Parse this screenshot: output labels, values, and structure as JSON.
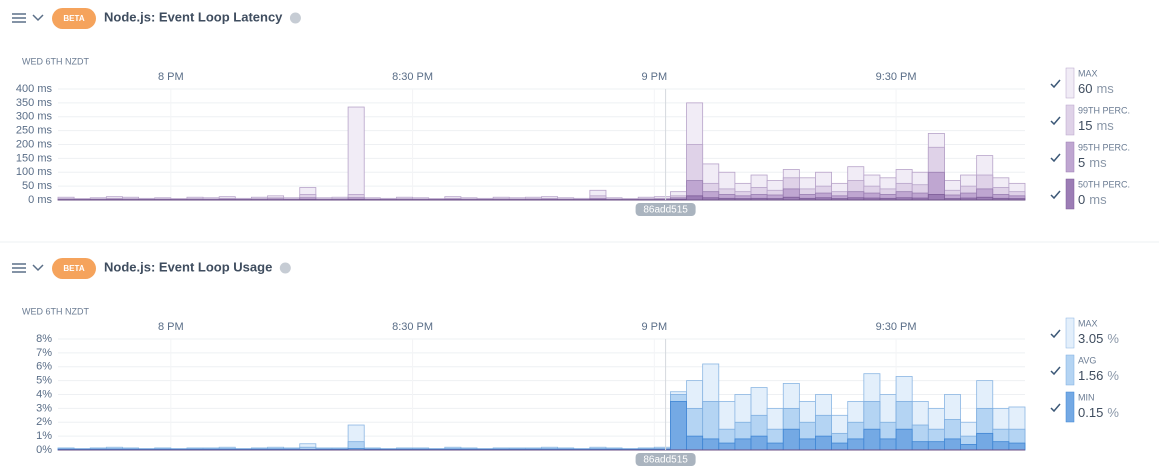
{
  "chart_data": [
    {
      "type": "bar",
      "badge": "BETA",
      "title": "Node.js: Event Loop Latency",
      "date_label": "WED 6TH NZDT",
      "deploy_label": "86add515",
      "grid": true,
      "categories": [
        null,
        null,
        null,
        null,
        null,
        null,
        null,
        "8 PM",
        null,
        null,
        null,
        null,
        null,
        null,
        null,
        null,
        null,
        null,
        null,
        null,
        null,
        null,
        "8:30 PM",
        null,
        null,
        null,
        null,
        null,
        null,
        null,
        null,
        null,
        null,
        null,
        null,
        null,
        null,
        "9 PM",
        null,
        null,
        null,
        null,
        null,
        null,
        null,
        null,
        null,
        null,
        null,
        null,
        null,
        null,
        "9:30 PM",
        null,
        null,
        null,
        null,
        null,
        null,
        null
      ],
      "ylim": [
        0,
        400
      ],
      "yticks": [
        {
          "value": 0,
          "label": "0 ms"
        },
        {
          "value": 50,
          "label": "50 ms"
        },
        {
          "value": 100,
          "label": "100 ms"
        },
        {
          "value": 150,
          "label": "150 ms"
        },
        {
          "value": 200,
          "label": "200 ms"
        },
        {
          "value": 250,
          "label": "250 ms"
        },
        {
          "value": 300,
          "label": "300 ms"
        },
        {
          "value": 350,
          "label": "350 ms"
        },
        {
          "value": 400,
          "label": "400 ms"
        }
      ],
      "series": [
        {
          "name": "MAX",
          "legend_value": 60,
          "unit": "ms",
          "color": "#f1ecf6",
          "stroke": "#b7a3c9",
          "values": [
            10,
            5,
            8,
            12,
            10,
            6,
            8,
            5,
            10,
            8,
            12,
            6,
            10,
            15,
            8,
            45,
            8,
            10,
            335,
            8,
            6,
            10,
            8,
            5,
            12,
            8,
            6,
            10,
            8,
            10,
            12,
            8,
            6,
            35,
            8,
            5,
            10,
            12,
            30,
            350,
            130,
            100,
            60,
            90,
            70,
            110,
            80,
            100,
            60,
            120,
            90,
            80,
            110,
            100,
            240,
            70,
            90,
            160,
            80,
            60
          ]
        },
        {
          "name": "99TH PERC.",
          "legend_value": 15,
          "unit": "ms",
          "color": "#dfd2e8",
          "stroke": "#b7a3c9",
          "values": [
            5,
            3,
            4,
            6,
            5,
            3,
            4,
            3,
            5,
            4,
            6,
            3,
            5,
            8,
            4,
            20,
            4,
            5,
            20,
            4,
            3,
            5,
            4,
            3,
            6,
            4,
            3,
            5,
            4,
            5,
            6,
            4,
            3,
            15,
            4,
            3,
            5,
            6,
            15,
            200,
            60,
            40,
            30,
            45,
            35,
            80,
            40,
            50,
            30,
            70,
            50,
            40,
            60,
            55,
            190,
            35,
            50,
            90,
            45,
            30
          ]
        },
        {
          "name": "95TH PERC.",
          "legend_value": 5,
          "unit": "ms",
          "color": "#bfa6d1",
          "stroke": "#9a7fb2",
          "values": [
            2,
            2,
            2,
            3,
            2,
            2,
            2,
            2,
            2,
            2,
            3,
            2,
            2,
            4,
            2,
            8,
            2,
            2,
            8,
            2,
            2,
            2,
            2,
            2,
            3,
            2,
            2,
            2,
            2,
            2,
            3,
            2,
            2,
            6,
            2,
            2,
            2,
            3,
            8,
            70,
            30,
            20,
            15,
            20,
            18,
            40,
            20,
            25,
            15,
            30,
            25,
            20,
            30,
            25,
            100,
            18,
            25,
            40,
            20,
            15
          ]
        },
        {
          "name": "50TH PERC.",
          "legend_value": 0,
          "unit": "ms",
          "color": "#9c7db5",
          "stroke": "#7d5d98",
          "values": [
            1,
            1,
            1,
            1,
            1,
            1,
            1,
            1,
            1,
            1,
            1,
            1,
            1,
            1,
            1,
            2,
            1,
            1,
            2,
            1,
            1,
            1,
            1,
            1,
            1,
            1,
            1,
            1,
            1,
            1,
            1,
            1,
            1,
            2,
            1,
            1,
            1,
            1,
            3,
            15,
            8,
            6,
            5,
            6,
            5,
            10,
            6,
            8,
            5,
            8,
            7,
            6,
            8,
            7,
            20,
            5,
            7,
            10,
            6,
            5
          ]
        }
      ]
    },
    {
      "type": "bar",
      "badge": "BETA",
      "title": "Node.js: Event Loop Usage",
      "date_label": "WED 6TH NZDT",
      "deploy_label": "86add515",
      "grid": true,
      "categories": [
        null,
        null,
        null,
        null,
        null,
        null,
        null,
        "8 PM",
        null,
        null,
        null,
        null,
        null,
        null,
        null,
        null,
        null,
        null,
        null,
        null,
        null,
        null,
        "8:30 PM",
        null,
        null,
        null,
        null,
        null,
        null,
        null,
        null,
        null,
        null,
        null,
        null,
        null,
        null,
        "9 PM",
        null,
        null,
        null,
        null,
        null,
        null,
        null,
        null,
        null,
        null,
        null,
        null,
        null,
        null,
        "9:30 PM",
        null,
        null,
        null,
        null,
        null,
        null,
        null
      ],
      "ylim": [
        0,
        8
      ],
      "yticks": [
        {
          "value": 0,
          "label": "0%"
        },
        {
          "value": 1,
          "label": "1%"
        },
        {
          "value": 2,
          "label": "2%"
        },
        {
          "value": 3,
          "label": "3%"
        },
        {
          "value": 4,
          "label": "4%"
        },
        {
          "value": 5,
          "label": "5%"
        },
        {
          "value": 6,
          "label": "6%"
        },
        {
          "value": 7,
          "label": "7%"
        },
        {
          "value": 8,
          "label": "8%"
        }
      ],
      "series": [
        {
          "name": "MAX",
          "legend_value": 3.05,
          "unit": "%",
          "color": "#e3effb",
          "stroke": "#8bb6e3",
          "values": [
            0.15,
            0.1,
            0.15,
            0.2,
            0.15,
            0.1,
            0.15,
            0.1,
            0.15,
            0.15,
            0.2,
            0.1,
            0.15,
            0.2,
            0.15,
            0.45,
            0.15,
            0.15,
            1.8,
            0.15,
            0.1,
            0.15,
            0.15,
            0.1,
            0.2,
            0.15,
            0.1,
            0.15,
            0.15,
            0.15,
            0.2,
            0.15,
            0.1,
            0.2,
            0.15,
            0.1,
            0.15,
            0.2,
            4.2,
            5.0,
            6.2,
            3.5,
            4.0,
            4.5,
            3.0,
            4.8,
            3.5,
            4.0,
            2.5,
            3.5,
            5.5,
            4.0,
            5.3,
            3.5,
            3.0,
            4.0,
            2.0,
            5.0,
            3.0,
            3.1
          ]
        },
        {
          "name": "AVG",
          "legend_value": 1.56,
          "unit": "%",
          "color": "#b4d4f3",
          "stroke": "#7eaee0",
          "values": [
            0.1,
            0.08,
            0.1,
            0.12,
            0.1,
            0.08,
            0.1,
            0.08,
            0.1,
            0.1,
            0.12,
            0.08,
            0.1,
            0.12,
            0.1,
            0.2,
            0.1,
            0.1,
            0.6,
            0.1,
            0.08,
            0.1,
            0.1,
            0.08,
            0.12,
            0.1,
            0.08,
            0.1,
            0.1,
            0.1,
            0.12,
            0.1,
            0.08,
            0.12,
            0.1,
            0.08,
            0.1,
            0.12,
            4.0,
            3.0,
            3.5,
            1.5,
            2.0,
            2.5,
            1.5,
            3.0,
            2.0,
            2.5,
            1.2,
            2.0,
            3.5,
            2.0,
            3.5,
            1.8,
            1.5,
            2.2,
            1.0,
            3.0,
            1.5,
            1.5
          ]
        },
        {
          "name": "MIN",
          "legend_value": 0.15,
          "unit": "%",
          "color": "#74a9e4",
          "stroke": "#3f86d4",
          "values": [
            0.05,
            0.05,
            0.05,
            0.05,
            0.05,
            0.05,
            0.05,
            0.05,
            0.05,
            0.05,
            0.05,
            0.05,
            0.05,
            0.05,
            0.05,
            0.05,
            0.05,
            0.05,
            0.1,
            0.05,
            0.05,
            0.05,
            0.05,
            0.05,
            0.05,
            0.05,
            0.05,
            0.05,
            0.05,
            0.05,
            0.05,
            0.05,
            0.05,
            0.05,
            0.05,
            0.05,
            0.05,
            0.05,
            3.5,
            1.0,
            0.8,
            0.5,
            0.8,
            1.0,
            0.5,
            1.5,
            0.8,
            1.0,
            0.5,
            0.8,
            1.5,
            0.8,
            1.5,
            0.6,
            0.6,
            0.8,
            0.4,
            1.2,
            0.6,
            0.5
          ]
        }
      ]
    }
  ]
}
